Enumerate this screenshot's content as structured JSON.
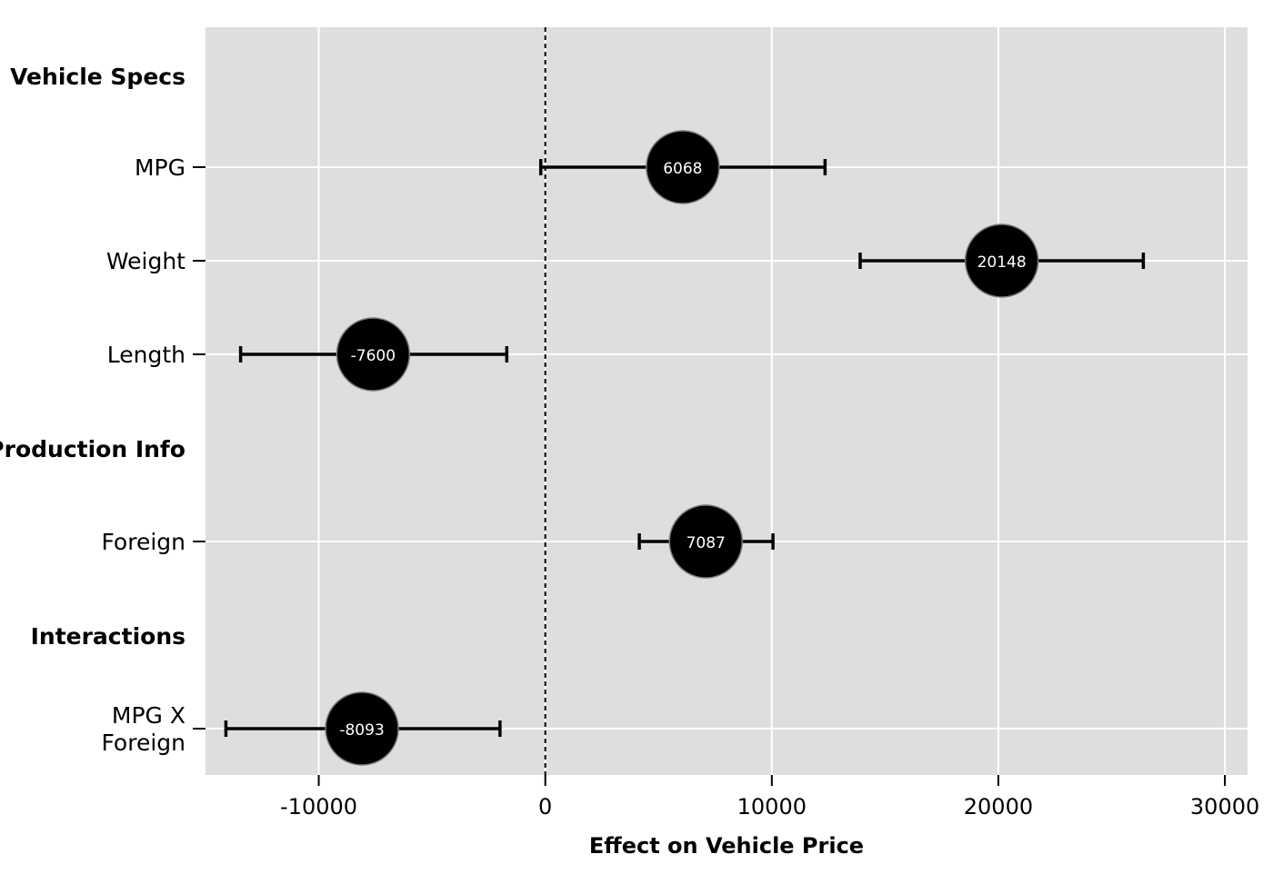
{
  "chart_data": {
    "type": "scatter",
    "subtype": "coefficient plot with error bars",
    "xlabel": "Effect on Vehicle Price",
    "xlim": [
      -15000,
      31000
    ],
    "xticks": [
      -10000,
      0,
      10000,
      20000,
      30000
    ],
    "xtick_labels": [
      "-10000",
      "0",
      "10000",
      "20000",
      "30000"
    ],
    "reference_line": {
      "x": 0,
      "style": "dashed"
    },
    "grid": true,
    "panel_background": "#dedede",
    "grid_color": "#ffffff",
    "point_color": "#000000",
    "point_label_color": "#ffffff",
    "rows": [
      {
        "kind": "group",
        "label": "Vehicle Specs"
      },
      {
        "kind": "term",
        "label": [
          "MPG"
        ],
        "estimate": 6068,
        "estimate_label": "6068",
        "low": -200,
        "high": 12350
      },
      {
        "kind": "term",
        "label": [
          "Weight"
        ],
        "estimate": 20148,
        "estimate_label": "20148",
        "low": 13900,
        "high": 26400
      },
      {
        "kind": "term",
        "label": [
          "Length"
        ],
        "estimate": -7600,
        "estimate_label": "-7600",
        "low": -13450,
        "high": -1700
      },
      {
        "kind": "group",
        "label": "Production Info"
      },
      {
        "kind": "term",
        "label": [
          "Foreign"
        ],
        "estimate": 7087,
        "estimate_label": "7087",
        "low": 4150,
        "high": 10050
      },
      {
        "kind": "group",
        "label": "Interactions"
      },
      {
        "kind": "term",
        "label": [
          "MPG X",
          "Foreign"
        ],
        "estimate": -8093,
        "estimate_label": "-8093",
        "low": -14100,
        "high": -2000
      }
    ]
  }
}
